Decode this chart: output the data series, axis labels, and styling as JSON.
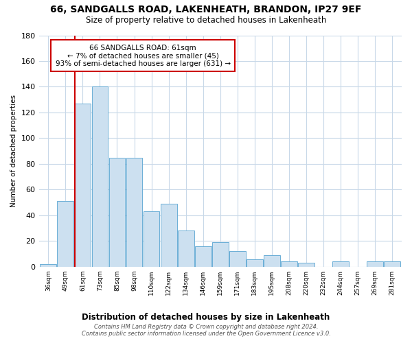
{
  "title": "66, SANDGALLS ROAD, LAKENHEATH, BRANDON, IP27 9EF",
  "subtitle": "Size of property relative to detached houses in Lakenheath",
  "xlabel": "Distribution of detached houses by size in Lakenheath",
  "ylabel": "Number of detached properties",
  "bar_labels": [
    "36sqm",
    "49sqm",
    "61sqm",
    "73sqm",
    "85sqm",
    "98sqm",
    "110sqm",
    "122sqm",
    "134sqm",
    "146sqm",
    "159sqm",
    "171sqm",
    "183sqm",
    "195sqm",
    "208sqm",
    "220sqm",
    "232sqm",
    "244sqm",
    "257sqm",
    "269sqm",
    "281sqm"
  ],
  "bar_values": [
    2,
    51,
    127,
    140,
    85,
    85,
    43,
    49,
    28,
    16,
    19,
    12,
    6,
    9,
    4,
    3,
    0,
    4,
    0,
    4,
    4
  ],
  "bar_color": "#cce0f0",
  "bar_edge_color": "#6baed6",
  "highlight_x_label": "61sqm",
  "highlight_line_color": "#cc0000",
  "annotation_line1": "66 SANDGALLS ROAD: 61sqm",
  "annotation_line2": "← 7% of detached houses are smaller (45)",
  "annotation_line3": "93% of semi-detached houses are larger (631) →",
  "annotation_box_edgecolor": "#cc0000",
  "annotation_box_facecolor": "#ffffff",
  "ylim": [
    0,
    180
  ],
  "yticks": [
    0,
    20,
    40,
    60,
    80,
    100,
    120,
    140,
    160,
    180
  ],
  "footer_line1": "Contains HM Land Registry data © Crown copyright and database right 2024.",
  "footer_line2": "Contains public sector information licensed under the Open Government Licence v3.0.",
  "bg_color": "#ffffff",
  "grid_color": "#c8d8e8"
}
